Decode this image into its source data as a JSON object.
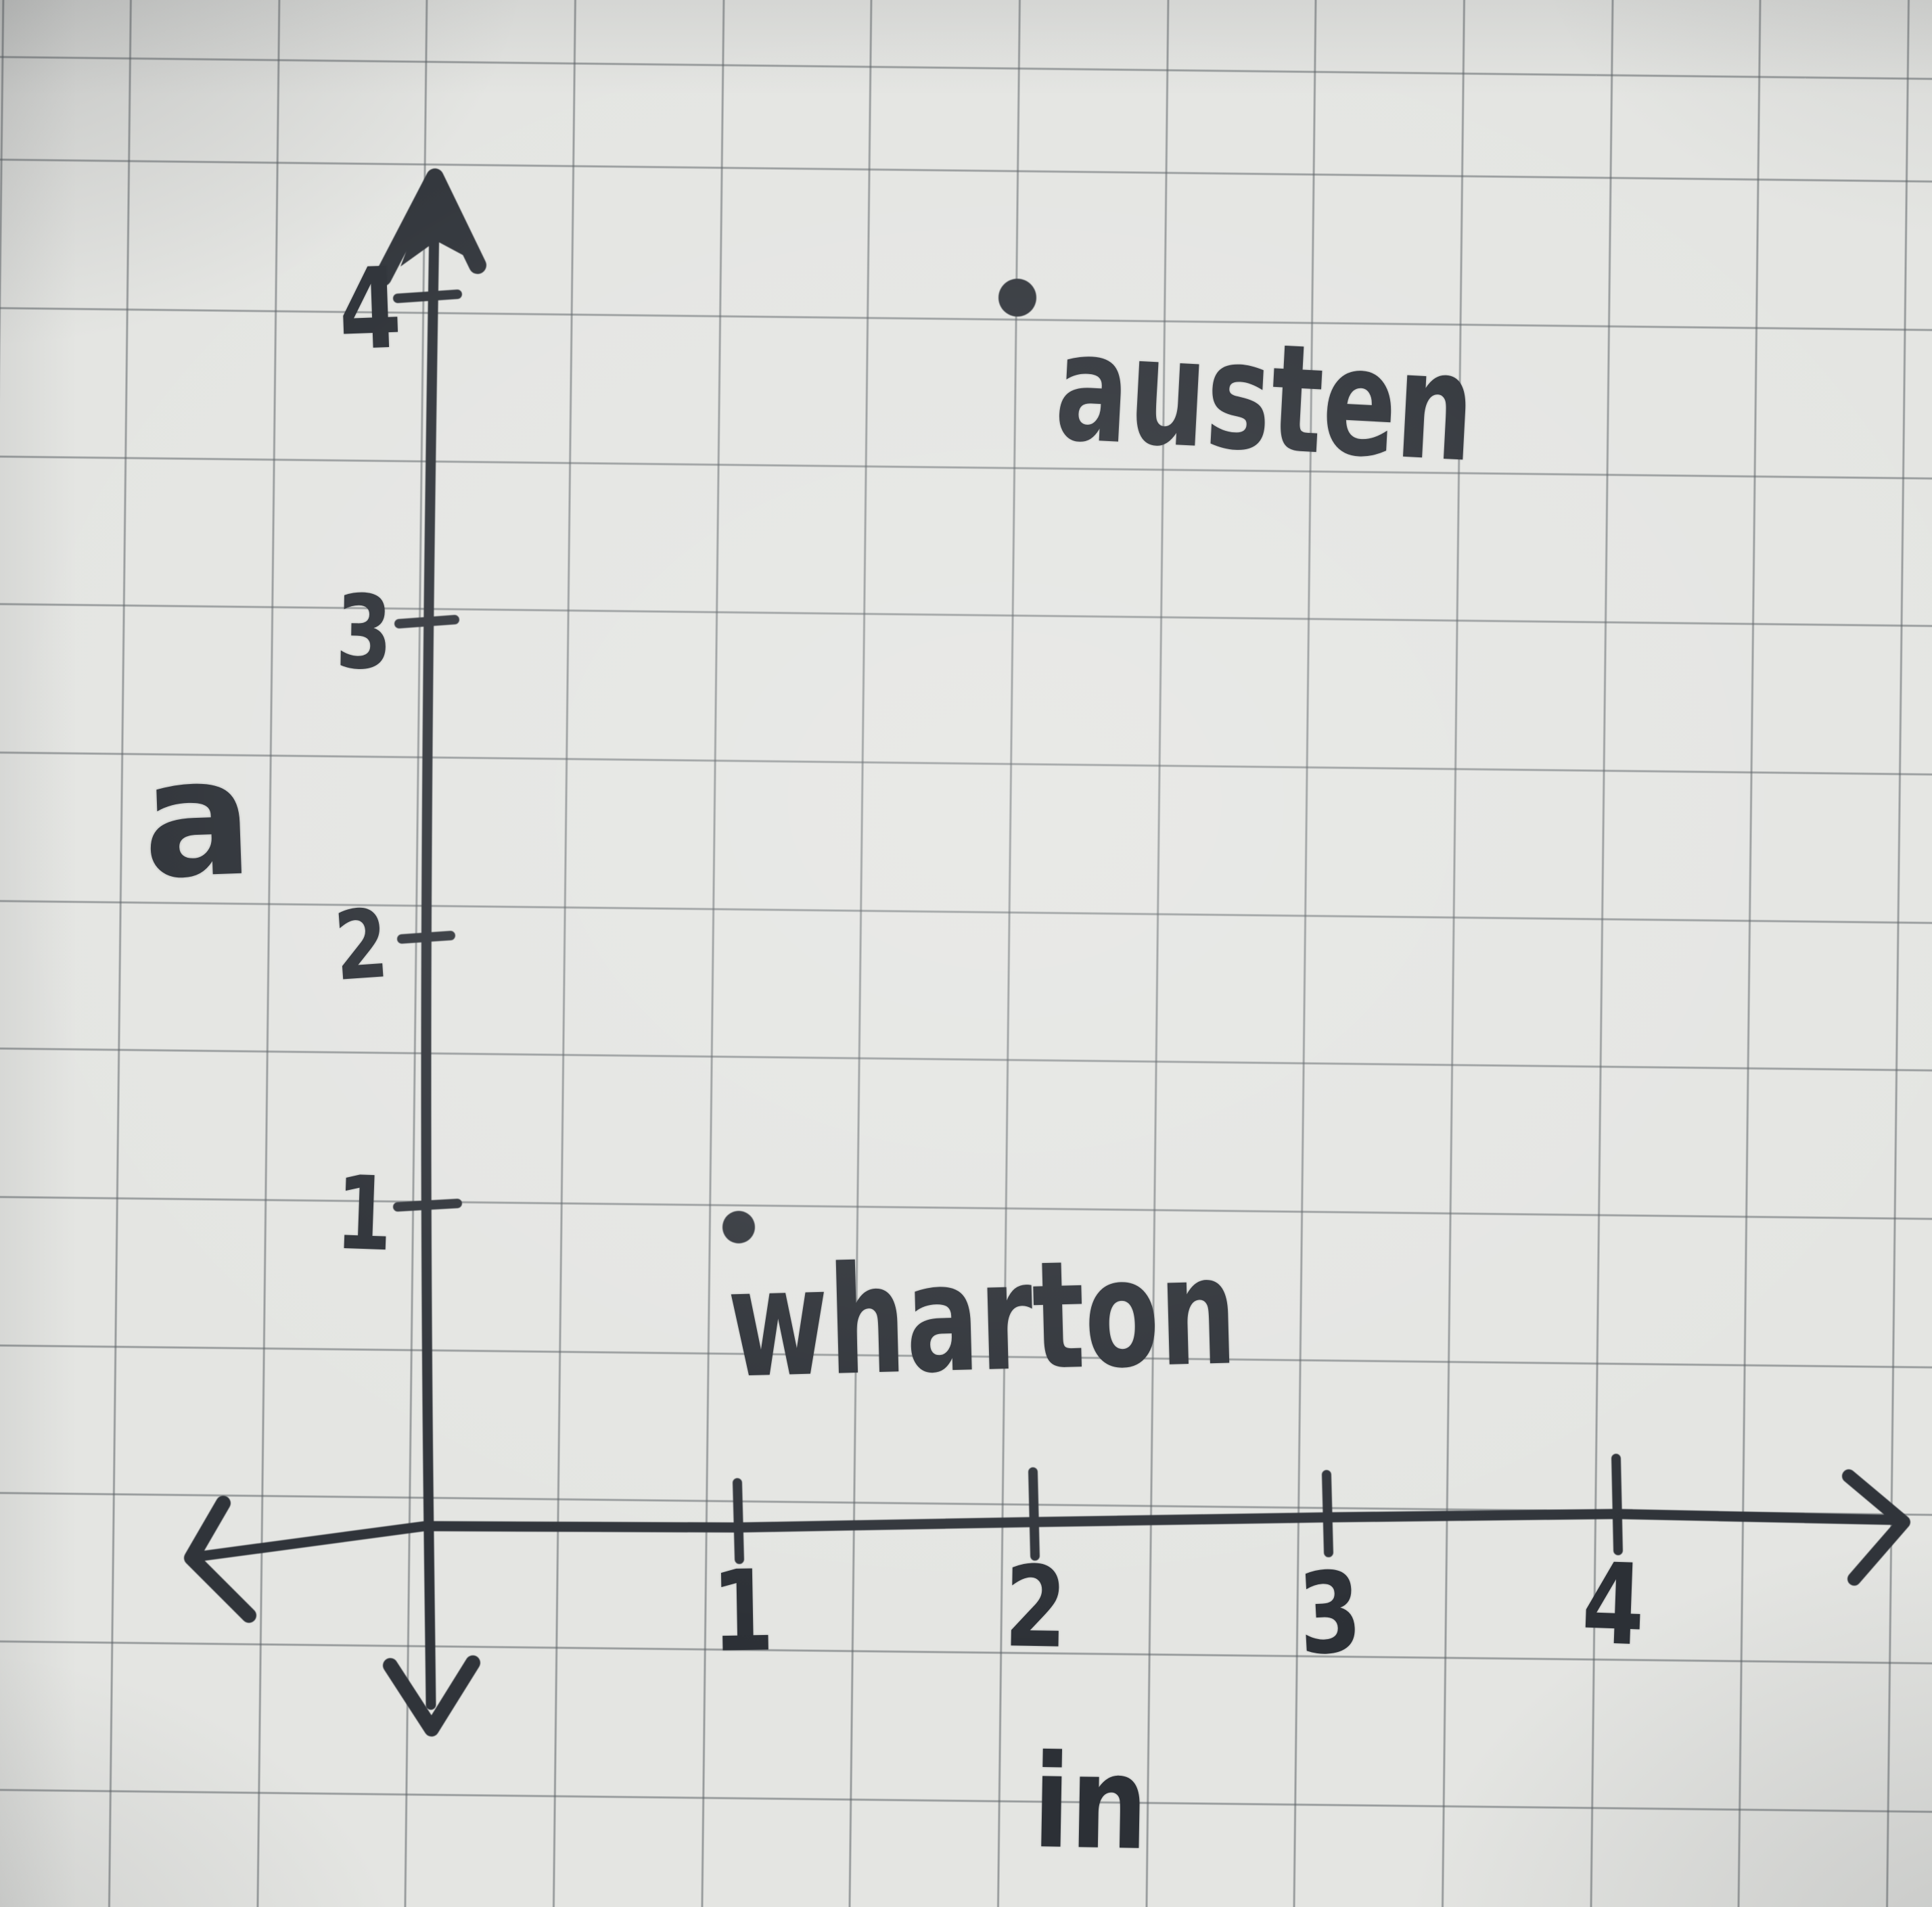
{
  "chart_data": {
    "type": "scatter",
    "title": "",
    "xlabel": "in",
    "ylabel": "a",
    "x_tick_labels": [
      "1",
      "2",
      "3",
      "4"
    ],
    "y_tick_labels": [
      "4",
      "3",
      "2",
      "1"
    ],
    "xlim": [
      -0.9,
      5.1
    ],
    "ylim": [
      -0.7,
      4.6
    ],
    "grid": "graph-paper background",
    "legend": "none",
    "points": [
      {
        "label": "austen",
        "x": 2,
        "y": 4
      },
      {
        "label": "wharton",
        "x": 1,
        "y": 1
      }
    ]
  },
  "style": {
    "ink": "#30343a",
    "text_ink": "#2c3036",
    "paper": "#e4e5e2",
    "grid_line": "#9a9da0"
  }
}
